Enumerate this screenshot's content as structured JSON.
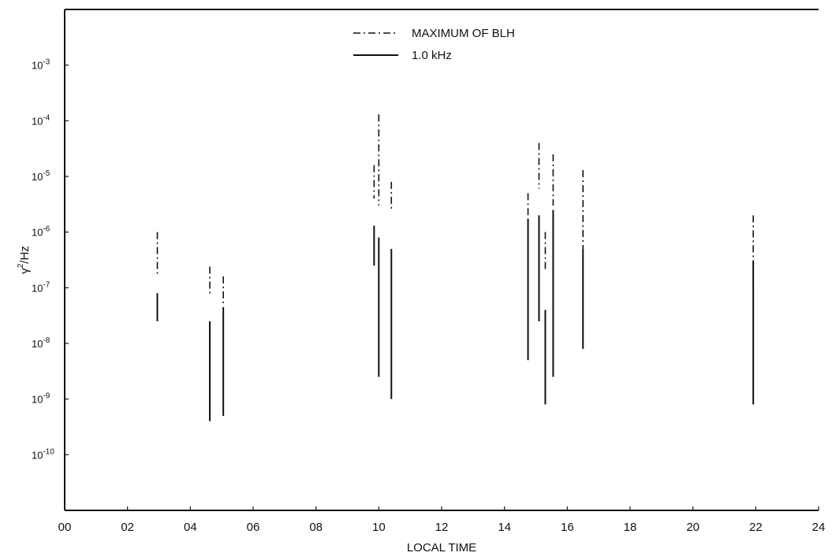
{
  "chart_data": {
    "type": "line",
    "title": "",
    "xlabel": "LOCAL TIME",
    "ylabel": "γ²/Hz",
    "ylabel_parts": {
      "base": "γ",
      "sup": "2",
      "rest": "/Hz"
    },
    "x_ticks": [
      "00",
      "02",
      "04",
      "06",
      "08",
      "10",
      "12",
      "14",
      "16",
      "18",
      "20",
      "22",
      "24"
    ],
    "xlim": [
      0,
      24
    ],
    "y_scale": "log",
    "ylim": [
      1e-11,
      0.01
    ],
    "y_ticks": [
      {
        "value": 0.001,
        "base": "10",
        "exp": "-3"
      },
      {
        "value": 0.0001,
        "base": "10",
        "exp": "-4"
      },
      {
        "value": 1e-05,
        "base": "10",
        "exp": "-5"
      },
      {
        "value": 1e-06,
        "base": "10",
        "exp": "-6"
      },
      {
        "value": 1e-07,
        "base": "10",
        "exp": "-7"
      },
      {
        "value": 1e-08,
        "base": "10",
        "exp": "-8"
      },
      {
        "value": 1e-09,
        "base": "10",
        "exp": "-9"
      },
      {
        "value": 1e-10,
        "base": "10",
        "exp": "-10"
      }
    ],
    "grid": false,
    "legend_position": "top-center",
    "series": [
      {
        "name": "MAXIMUM OF BLH",
        "style": "dash-dot",
        "segments": [
          {
            "x": 2.95,
            "y_low": 1.6e-07,
            "y_high": 1e-06
          },
          {
            "x": 4.62,
            "y_low": 7e-08,
            "y_high": 2.4e-07
          },
          {
            "x": 5.05,
            "y_low": 5e-08,
            "y_high": 1.6e-07
          },
          {
            "x": 9.85,
            "y_low": 4e-06,
            "y_high": 1.6e-05
          },
          {
            "x": 10.0,
            "y_low": 3e-06,
            "y_high": 0.00013
          },
          {
            "x": 10.4,
            "y_low": 2.5e-06,
            "y_high": 8e-06
          },
          {
            "x": 14.75,
            "y_low": 4e-07,
            "y_high": 5e-06
          },
          {
            "x": 15.1,
            "y_low": 6e-06,
            "y_high": 4e-05
          },
          {
            "x": 15.3,
            "y_low": 2e-07,
            "y_high": 1e-06
          },
          {
            "x": 15.55,
            "y_low": 3e-06,
            "y_high": 2.5e-05
          },
          {
            "x": 16.5,
            "y_low": 5e-07,
            "y_high": 1.3e-05
          },
          {
            "x": 21.92,
            "y_low": 1e-07,
            "y_high": 2e-06
          }
        ]
      },
      {
        "name": "1.0 kHz",
        "style": "solid",
        "segments": [
          {
            "x": 2.95,
            "y_low": 2.5e-08,
            "y_high": 8e-08
          },
          {
            "x": 4.62,
            "y_low": 4e-10,
            "y_high": 2.5e-08
          },
          {
            "x": 5.05,
            "y_low": 5e-10,
            "y_high": 4.5e-08
          },
          {
            "x": 9.85,
            "y_low": 2.5e-07,
            "y_high": 1.3e-06
          },
          {
            "x": 10.0,
            "y_low": 2.5e-09,
            "y_high": 8e-07
          },
          {
            "x": 10.4,
            "y_low": 1e-09,
            "y_high": 5e-07
          },
          {
            "x": 14.75,
            "y_low": 5e-09,
            "y_high": 1.7e-06
          },
          {
            "x": 15.1,
            "y_low": 2.5e-08,
            "y_high": 2e-06
          },
          {
            "x": 15.3,
            "y_low": 8e-10,
            "y_high": 4e-08
          },
          {
            "x": 15.55,
            "y_low": 2.5e-09,
            "y_high": 2.5e-06
          },
          {
            "x": 16.5,
            "y_low": 8e-09,
            "y_high": 5e-07
          },
          {
            "x": 21.92,
            "y_low": 8e-10,
            "y_high": 3e-07
          }
        ]
      }
    ]
  },
  "legend": {
    "items": [
      {
        "label": "MAXIMUM OF BLH",
        "style": "dash-dot"
      },
      {
        "label": "1.0 kHz",
        "style": "solid"
      }
    ]
  }
}
